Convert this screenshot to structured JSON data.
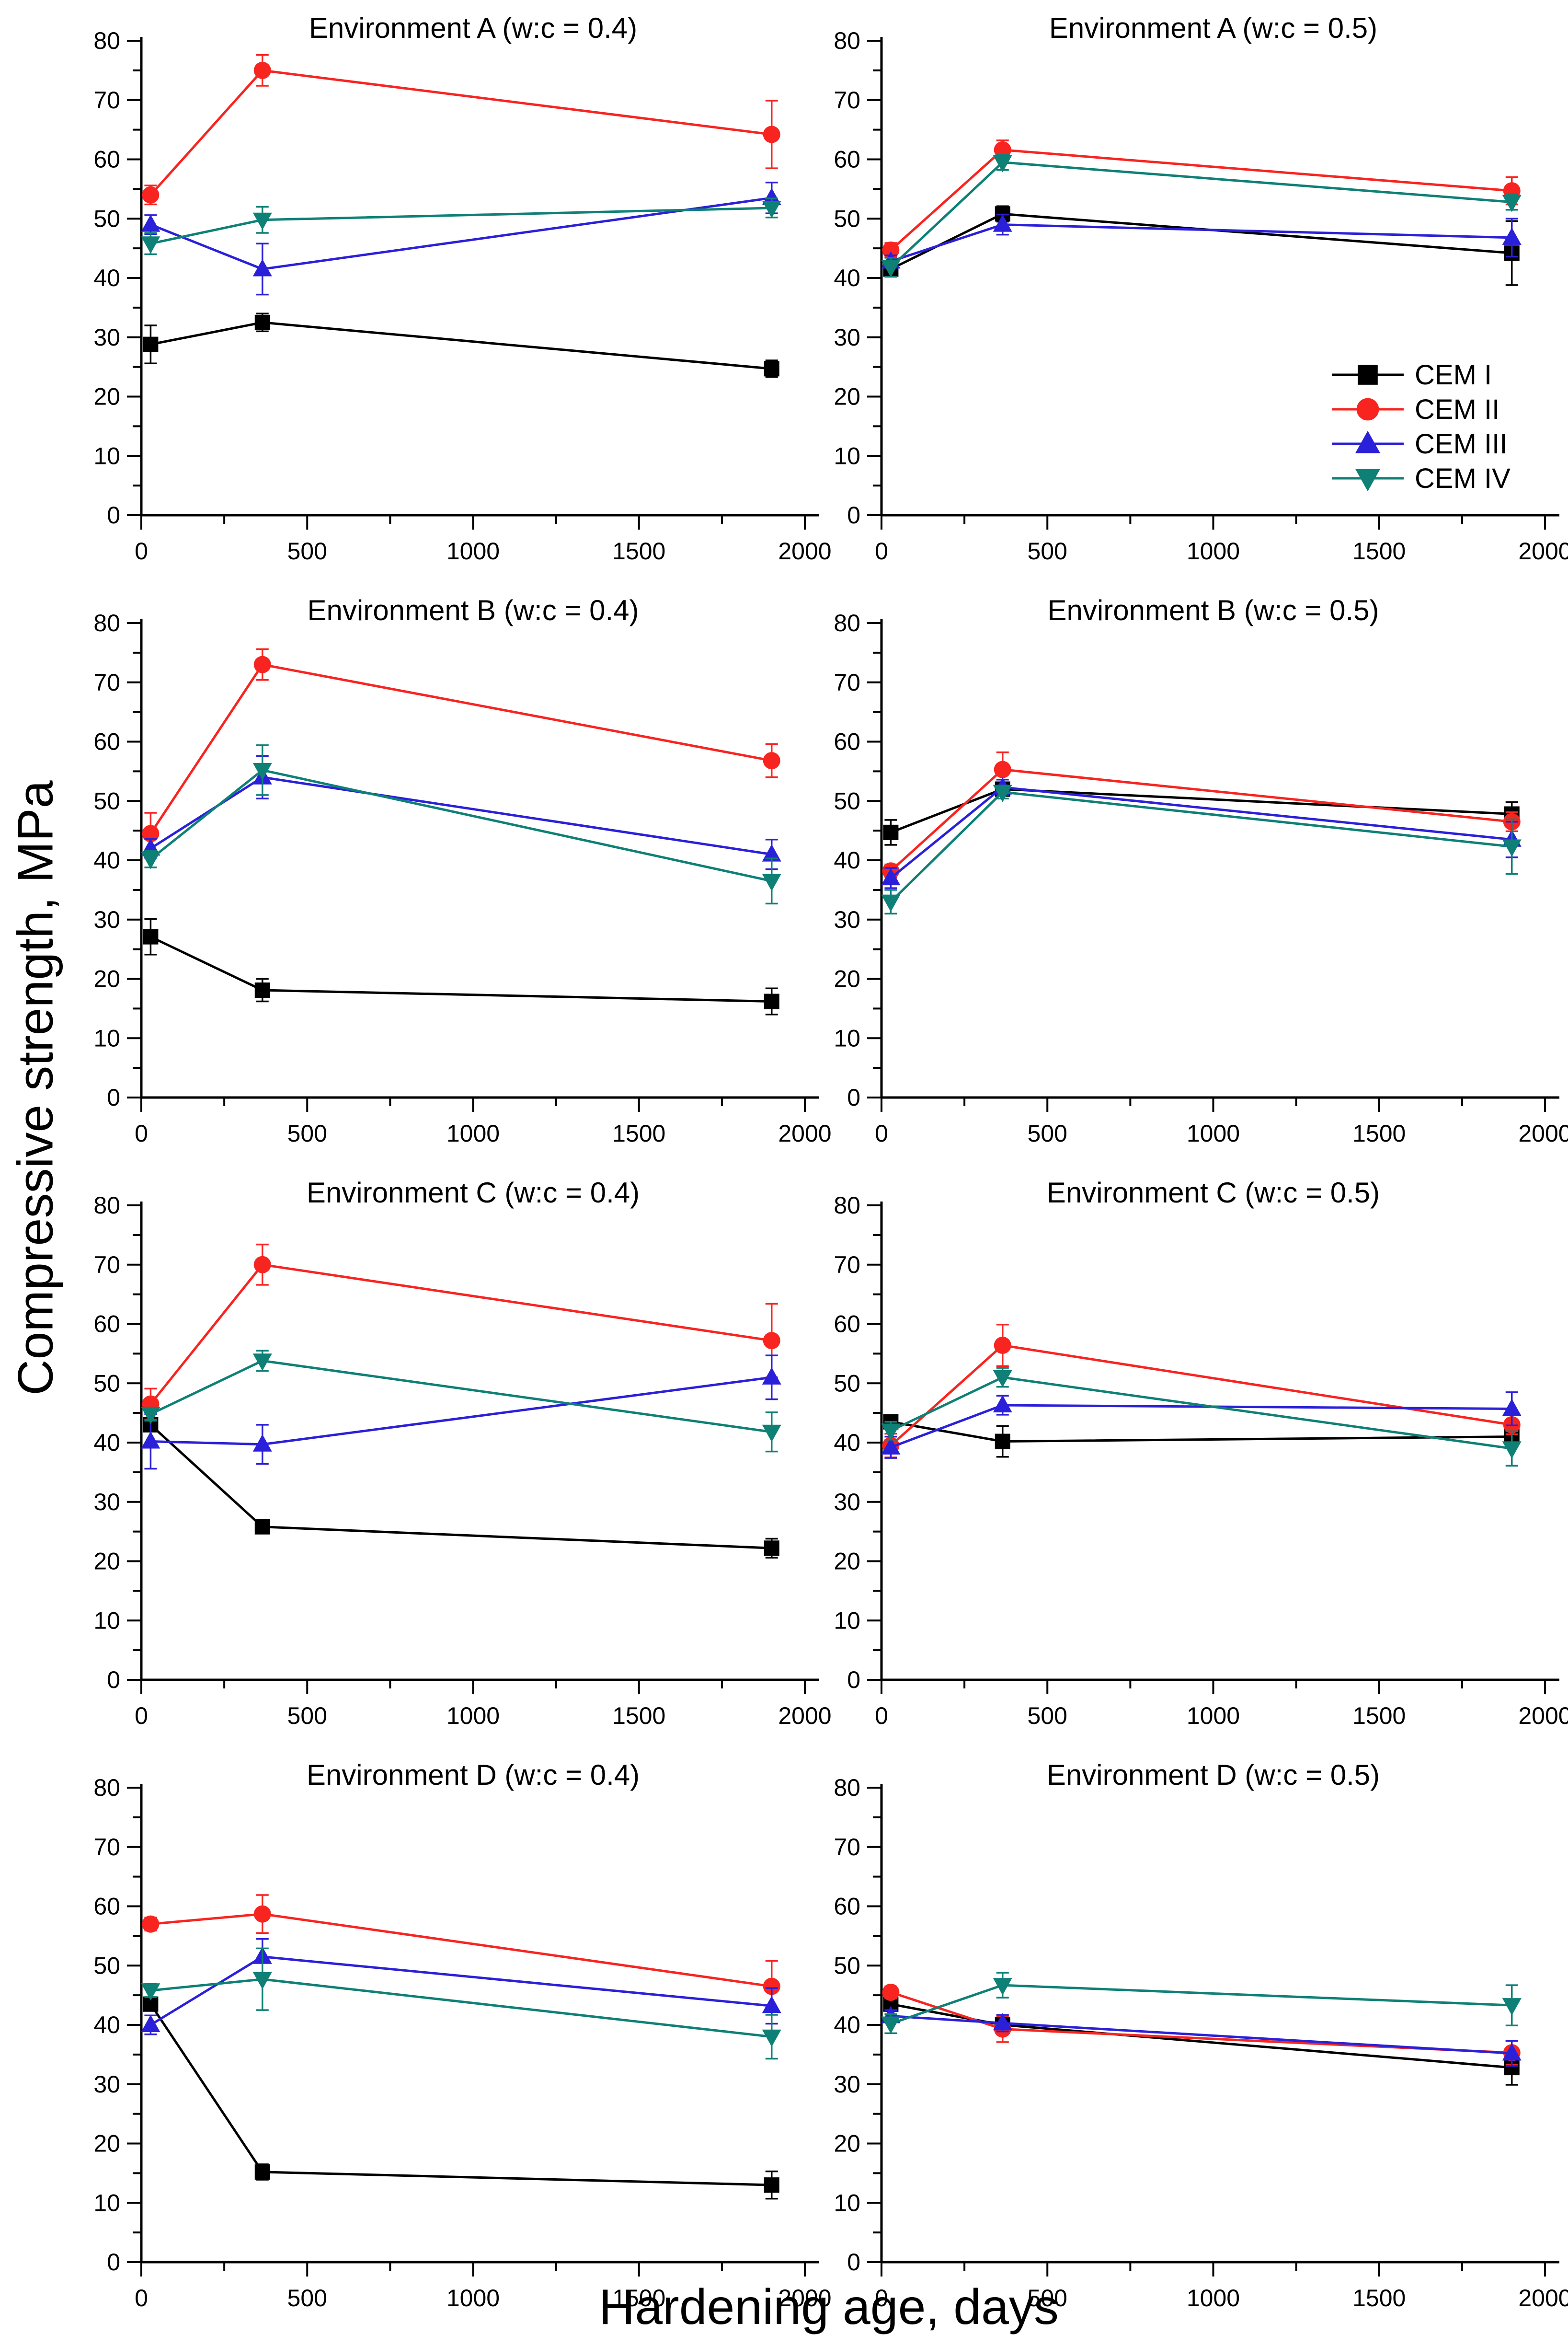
{
  "figure": {
    "xlabel": "Hardening age, days",
    "ylabel": "Compressive strength, MPa"
  },
  "chart_data": {
    "type": "line",
    "xlabel": "Hardening age, days",
    "ylabel": "Compressive strength, MPa",
    "x": [
      28,
      365,
      1900
    ],
    "xlim": [
      0,
      2000
    ],
    "ylim": [
      0,
      80
    ],
    "x_major_ticks": [
      0,
      500,
      1000,
      1500,
      2000
    ],
    "x_minor_step": 250,
    "y_major_step": 10,
    "y_minor_step": 5,
    "grid": false,
    "legend": {
      "panel_index": 1,
      "position": "lower right",
      "entries": [
        "CEM I",
        "CEM II",
        "CEM III",
        "CEM IV"
      ]
    },
    "series_meta": [
      {
        "name": "CEM I",
        "color": "#000000",
        "marker": "square"
      },
      {
        "name": "CEM II",
        "color": "#f82420",
        "marker": "circle"
      },
      {
        "name": "CEM III",
        "color": "#2b20d9",
        "marker": "triangle-up"
      },
      {
        "name": "CEM IV",
        "color": "#0e8076",
        "marker": "triangle-down"
      }
    ],
    "panels": [
      {
        "title": "Environment A (w:c = 0.4)",
        "series": [
          {
            "name": "CEM I",
            "values": [
              28.8,
              32.5,
              24.7
            ],
            "errors": [
              3.2,
              1.5,
              1.4
            ]
          },
          {
            "name": "CEM II",
            "values": [
              54.0,
              75.0,
              64.2
            ],
            "errors": [
              1.6,
              2.6,
              5.7
            ]
          },
          {
            "name": "CEM III",
            "values": [
              49.0,
              41.5,
              53.5
            ],
            "errors": [
              1.6,
              4.3,
              2.6
            ]
          },
          {
            "name": "CEM IV",
            "values": [
              45.8,
              49.8,
              51.8
            ],
            "errors": [
              1.8,
              2.2,
              1.6
            ]
          }
        ]
      },
      {
        "title": "Environment A (w:c = 0.5)",
        "series": [
          {
            "name": "CEM I",
            "values": [
              41.5,
              50.8,
              44.2
            ],
            "errors": [
              1.2,
              1.3,
              5.4
            ]
          },
          {
            "name": "CEM II",
            "values": [
              44.7,
              61.6,
              54.7
            ],
            "errors": [
              1.2,
              1.6,
              2.3
            ]
          },
          {
            "name": "CEM III",
            "values": [
              42.8,
              49.0,
              46.8
            ],
            "errors": [
              1.0,
              1.7,
              3.2
            ]
          },
          {
            "name": "CEM IV",
            "values": [
              41.8,
              59.5,
              52.8
            ],
            "errors": [
              1.6,
              1.3,
              1.3
            ]
          }
        ]
      },
      {
        "title": "Environment B (w:c = 0.4)",
        "series": [
          {
            "name": "CEM I",
            "values": [
              27.1,
              18.1,
              16.2
            ],
            "errors": [
              3.0,
              1.9,
              2.2
            ]
          },
          {
            "name": "CEM II",
            "values": [
              44.5,
              73.0,
              56.8
            ],
            "errors": [
              3.5,
              2.6,
              2.8
            ]
          },
          {
            "name": "CEM III",
            "values": [
              42.0,
              54.0,
              41.0
            ],
            "errors": [
              1.6,
              3.6,
              2.5
            ]
          },
          {
            "name": "CEM IV",
            "values": [
              40.2,
              55.2,
              36.5
            ],
            "errors": [
              1.4,
              4.2,
              3.8
            ]
          }
        ]
      },
      {
        "title": "Environment B (w:c = 0.5)",
        "series": [
          {
            "name": "CEM I",
            "values": [
              44.7,
              52.0,
              47.8
            ],
            "errors": [
              2.1,
              1.1,
              2.0
            ]
          },
          {
            "name": "CEM II",
            "values": [
              38.2,
              55.3,
              46.5
            ],
            "errors": [
              1.1,
              2.9,
              1.6
            ]
          },
          {
            "name": "CEM III",
            "values": [
              37.0,
              52.3,
              43.5
            ],
            "errors": [
              1.7,
              1.3,
              3.0
            ]
          },
          {
            "name": "CEM IV",
            "values": [
              33.0,
              51.5,
              42.3
            ],
            "errors": [
              2.0,
              1.1,
              4.6
            ]
          }
        ]
      },
      {
        "title": "Environment C (w:c = 0.4)",
        "series": [
          {
            "name": "CEM I",
            "values": [
              43.0,
              25.8,
              22.2
            ],
            "errors": [
              1.1,
              1.1,
              1.6
            ]
          },
          {
            "name": "CEM II",
            "values": [
              46.5,
              70.0,
              57.2
            ],
            "errors": [
              2.6,
              3.4,
              6.2
            ]
          },
          {
            "name": "CEM III",
            "values": [
              40.2,
              39.7,
              51.0
            ],
            "errors": [
              4.6,
              3.3,
              3.7
            ]
          },
          {
            "name": "CEM IV",
            "values": [
              44.8,
              53.8,
              41.8
            ],
            "errors": [
              1.1,
              1.7,
              3.3
            ]
          }
        ]
      },
      {
        "title": "Environment C (w:c = 0.5)",
        "series": [
          {
            "name": "CEM I",
            "values": [
              43.5,
              40.2,
              41.0
            ],
            "errors": [
              1.0,
              2.6,
              1.1
            ]
          },
          {
            "name": "CEM II",
            "values": [
              39.5,
              56.4,
              43.0
            ],
            "errors": [
              2.0,
              3.5,
              1.6
            ]
          },
          {
            "name": "CEM III",
            "values": [
              39.2,
              46.3,
              45.7
            ],
            "errors": [
              1.8,
              1.6,
              2.8
            ]
          },
          {
            "name": "CEM IV",
            "values": [
              42.0,
              51.0,
              39.0
            ],
            "errors": [
              1.5,
              1.6,
              2.9
            ]
          }
        ]
      },
      {
        "title": "Environment D (w:c = 0.4)",
        "series": [
          {
            "name": "CEM I",
            "values": [
              43.5,
              15.2,
              13.0
            ],
            "errors": [
              1.0,
              1.3,
              2.3
            ]
          },
          {
            "name": "CEM II",
            "values": [
              57.0,
              58.7,
              46.5
            ],
            "errors": [
              1.1,
              3.2,
              4.3
            ]
          },
          {
            "name": "CEM III",
            "values": [
              40.0,
              51.5,
              43.2
            ],
            "errors": [
              1.6,
              3.0,
              3.0
            ]
          },
          {
            "name": "CEM IV",
            "values": [
              45.8,
              47.7,
              38.0
            ],
            "errors": [
              1.1,
              5.2,
              3.7
            ]
          }
        ]
      },
      {
        "title": "Environment D (w:c = 0.5)",
        "series": [
          {
            "name": "CEM I",
            "values": [
              43.5,
              40.0,
              32.8
            ],
            "errors": [
              1.0,
              1.2,
              2.9
            ]
          },
          {
            "name": "CEM II",
            "values": [
              45.5,
              39.3,
              35.3
            ],
            "errors": [
              1.0,
              2.2,
              2.0
            ]
          },
          {
            "name": "CEM III",
            "values": [
              41.5,
              40.3,
              35.2
            ],
            "errors": [
              1.0,
              1.4,
              2.1
            ]
          },
          {
            "name": "CEM IV",
            "values": [
              40.2,
              46.7,
              43.3
            ],
            "errors": [
              1.6,
              2.1,
              3.4
            ]
          }
        ]
      }
    ]
  }
}
